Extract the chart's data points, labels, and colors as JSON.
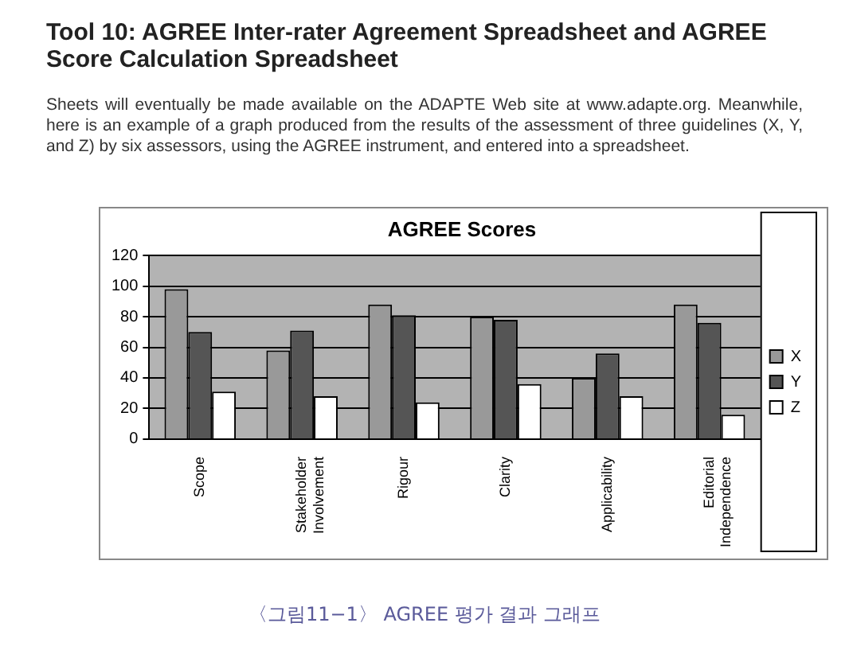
{
  "chart_data": {
    "type": "bar",
    "title": "AGREE Scores",
    "categories": [
      "Scope",
      "Stakeholder Involvement",
      "Rigour",
      "Clarity",
      "Applicability",
      "Editorial Independence"
    ],
    "series": [
      {
        "name": "X",
        "color": "#999999",
        "values": [
          98,
          58,
          88,
          80,
          40,
          88
        ]
      },
      {
        "name": "Y",
        "color": "#555555",
        "values": [
          70,
          71,
          81,
          78,
          56,
          76
        ]
      },
      {
        "name": "Z",
        "color": "#ffffff",
        "values": [
          31,
          28,
          24,
          36,
          28,
          16
        ]
      }
    ],
    "ylim": [
      0,
      120
    ],
    "yticks": [
      0,
      20,
      40,
      60,
      80,
      100,
      120
    ],
    "grid": "y",
    "legend": "right",
    "annotations": [
      "Tool 10: AGREE Inter-rater Agreement Spreadsheet and AGREE Score Calculation Spreadsheet",
      "Sheets will eventually be made available on the ADAPTE Web site at www.adapte.org. Meanwhile, here is an example of a graph produced from the results of the assessment of three guidelines (X, Y, and Z) by six assessors, using the AGREE instrument, and entered into a spreadsheet.",
      "〈그림11−1〉 AGREE 평가 결과 그래프"
    ]
  }
}
